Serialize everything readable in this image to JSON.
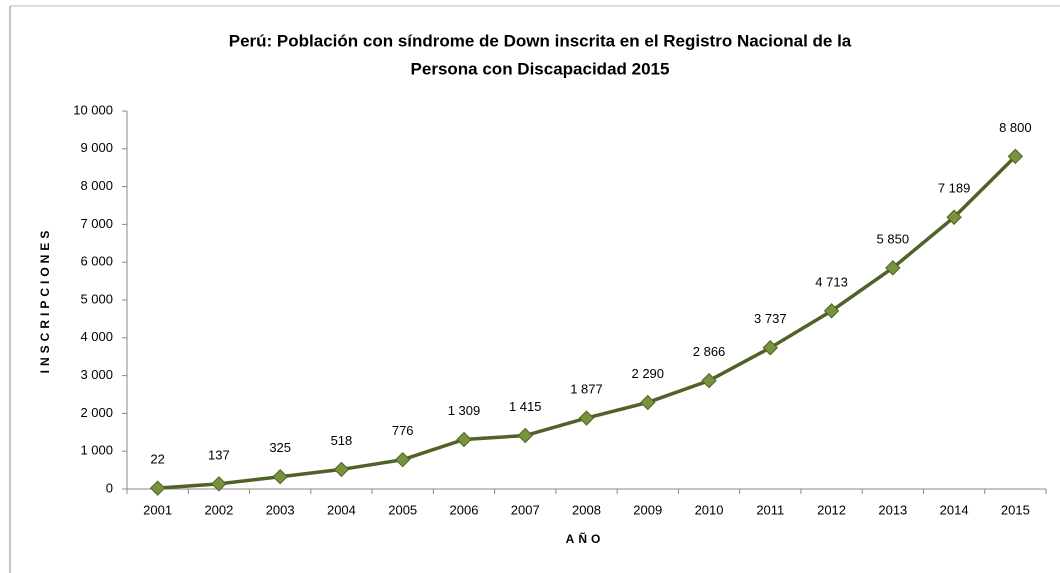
{
  "chart_data": {
    "type": "line",
    "title": [
      "Perú: Población con síndrome de Down inscrita en el Registro Nacional de la",
      "Persona con Discapacidad 2015"
    ],
    "x_label": "AÑO",
    "y_label": "INSCRIPCIONES",
    "categories": [
      "2001",
      "2002",
      "2003",
      "2004",
      "2005",
      "2006",
      "2007",
      "2008",
      "2009",
      "2010",
      "2011",
      "2012",
      "2013",
      "2014",
      "2015"
    ],
    "series": [
      {
        "name": "Inscripciones",
        "color": "#4f6228",
        "marker_color": "#77933c",
        "values": [
          22,
          137,
          325,
          518,
          776,
          1309,
          1415,
          1877,
          2290,
          2866,
          3737,
          4713,
          5850,
          7189,
          8800
        ],
        "value_labels": [
          "22",
          "137",
          "325",
          "518",
          "776",
          "1 309",
          "1 415",
          "1 877",
          "2 290",
          "2 866",
          "3 737",
          "4 713",
          "5 850",
          "7 189",
          "8 800"
        ]
      }
    ],
    "ylim": [
      0,
      10000
    ],
    "yticks": [
      0,
      {
        "value": 1000,
        "label": "1 000"
      },
      {
        "value": 2000,
        "label": "2 000"
      },
      {
        "value": 3000,
        "label": "3 000"
      },
      {
        "value": 4000,
        "label": "4 000"
      },
      {
        "value": 5000,
        "label": "5 000"
      },
      {
        "value": 6000,
        "label": "6 000"
      },
      {
        "value": 7000,
        "label": "7 000"
      },
      {
        "value": 8000,
        "label": "8 000"
      },
      {
        "value": 9000,
        "label": "9 000"
      },
      {
        "value": 10000,
        "label": "10 000"
      }
    ]
  }
}
